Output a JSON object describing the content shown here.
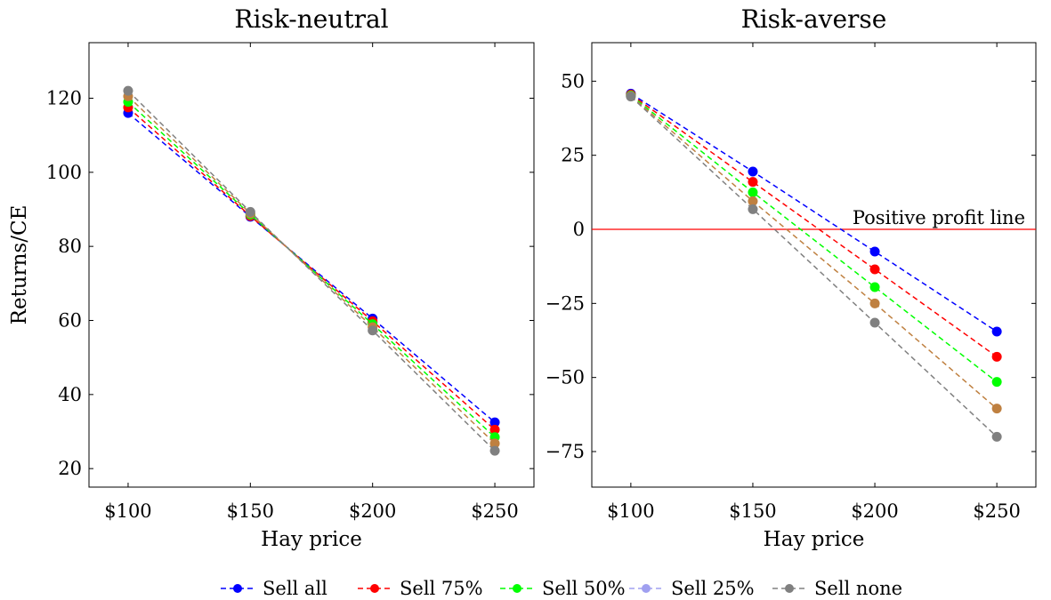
{
  "chart_data": [
    {
      "type": "line",
      "title": "Risk-neutral",
      "xlabel": "Hay price",
      "ylabel": "Returns/CE",
      "categories": [
        "$100",
        "$150",
        "$200",
        "$250"
      ],
      "x": [
        100,
        150,
        200,
        250
      ],
      "xlim": [
        84,
        266
      ],
      "ylim": [
        15,
        135
      ],
      "yticks": [
        20,
        40,
        60,
        80,
        100,
        120
      ],
      "ytick_labels": [
        "20",
        "40",
        "60",
        "80",
        "100",
        "120"
      ],
      "series": [
        {
          "name": "Sell all",
          "color": "#0000ff",
          "values": [
            116,
            88,
            60.5,
            32.5
          ]
        },
        {
          "name": "Sell 75%",
          "color": "#ff0000",
          "values": [
            117.5,
            88.2,
            59.8,
            30.5
          ]
        },
        {
          "name": "Sell 50%",
          "color": "#00ff00",
          "values": [
            119,
            88.6,
            59,
            28.5
          ]
        },
        {
          "name": "Sell 25%",
          "color": "#bf8040",
          "values": [
            120.5,
            88.9,
            58.2,
            26.8
          ]
        },
        {
          "name": "Sell none",
          "color": "#808080",
          "values": [
            122,
            89.3,
            57.3,
            24.8
          ]
        }
      ]
    },
    {
      "type": "line",
      "title": "Risk-averse",
      "xlabel": "Hay price",
      "ylabel": "",
      "categories": [
        "$100",
        "$150",
        "$200",
        "$250"
      ],
      "x": [
        100,
        150,
        200,
        250
      ],
      "xlim": [
        84,
        266
      ],
      "ylim": [
        -87,
        63
      ],
      "yticks": [
        -75,
        -50,
        -25,
        0,
        25,
        50
      ],
      "ytick_labels": [
        "−75",
        "−50",
        "−25",
        "0",
        "25",
        "50"
      ],
      "hline": {
        "y": 0,
        "color": "#ff0000",
        "label": "Positive profit line"
      },
      "series": [
        {
          "name": "Sell all",
          "color": "#0000ff",
          "values": [
            45.8,
            19.5,
            -7.5,
            -34.5
          ]
        },
        {
          "name": "Sell 75%",
          "color": "#ff0000",
          "values": [
            45.5,
            16,
            -13.5,
            -43
          ]
        },
        {
          "name": "Sell 50%",
          "color": "#00ff00",
          "values": [
            45.2,
            12.5,
            -19.5,
            -51.5
          ]
        },
        {
          "name": "Sell 25%",
          "color": "#bf8040",
          "values": [
            45,
            9.5,
            -25,
            -60.5
          ]
        },
        {
          "name": "Sell none",
          "color": "#808080",
          "values": [
            44.8,
            6.8,
            -31.5,
            -70
          ]
        }
      ]
    }
  ],
  "legend": [
    {
      "label": "Sell all",
      "color": "#0000ff"
    },
    {
      "label": "Sell 75%",
      "color": "#ff0000"
    },
    {
      "label": "Sell 50%",
      "color": "#00ff00"
    },
    {
      "label": "Sell 25%",
      "color": "#a0a0f0"
    },
    {
      "label": "Sell none",
      "color": "#808080"
    }
  ]
}
